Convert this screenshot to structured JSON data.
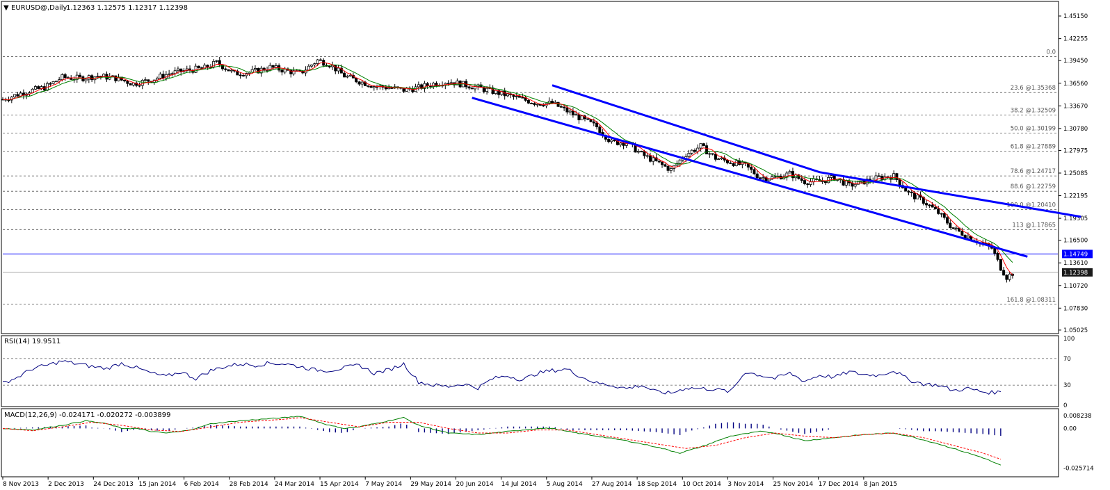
{
  "header": {
    "symbol": "EURUSD@,Daily",
    "ohlc": "1.12363 1.12575 1.12317 1.12398"
  },
  "colors": {
    "price_axis_bg": "#1a1a1a",
    "channel": "#0000ff",
    "hline": "#0000ff",
    "ma_fast": "#ff0000",
    "ma_slow": "#008000",
    "rsi": "#000080",
    "macd_main": "#008000",
    "macd_signal": "#ff0000",
    "macd_hist": "#000080"
  },
  "chart_data": [
    {
      "type": "candlestick",
      "title": "EURUSD@,Daily",
      "ylim": [
        1.0475,
        1.4675
      ],
      "y_ticks": [
        "1.45150",
        "1.42255",
        "1.39450",
        "1.36560",
        "1.33670",
        "1.30780",
        "1.27975",
        "1.25085",
        "1.22195",
        "1.19305",
        "1.16500",
        "1.13610",
        "1.10720",
        "1.07830",
        "1.05025"
      ],
      "x_labels": [
        "8 Nov 2013",
        "2 Dec 2013",
        "24 Dec 2013",
        "15 Jan 2014",
        "6 Feb 2014",
        "28 Feb 2014",
        "24 Mar 2014",
        "15 Apr 2014",
        "7 May 2014",
        "29 May 2014",
        "20 Jun 2014",
        "14 Jul 2014",
        "5 Aug 2014",
        "27 Aug 2014",
        "18 Sep 2014",
        "10 Oct 2014",
        "3 Nov 2014",
        "25 Nov 2014",
        "17 Dec 2014",
        "8 Jan 2015"
      ],
      "price_path": [
        [
          0,
          1.345
        ],
        [
          8,
          1.355
        ],
        [
          14,
          1.36
        ],
        [
          20,
          1.373
        ],
        [
          26,
          1.372
        ],
        [
          32,
          1.375
        ],
        [
          38,
          1.372
        ],
        [
          44,
          1.365
        ],
        [
          50,
          1.37
        ],
        [
          56,
          1.378
        ],
        [
          62,
          1.382
        ],
        [
          68,
          1.385
        ],
        [
          72,
          1.392
        ],
        [
          78,
          1.378
        ],
        [
          84,
          1.38
        ],
        [
          90,
          1.386
        ],
        [
          95,
          1.382
        ],
        [
          100,
          1.378
        ],
        [
          106,
          1.395
        ],
        [
          110,
          1.39
        ],
        [
          115,
          1.375
        ],
        [
          120,
          1.368
        ],
        [
          125,
          1.362
        ],
        [
          130,
          1.36
        ],
        [
          135,
          1.357
        ],
        [
          140,
          1.36
        ],
        [
          145,
          1.365
        ],
        [
          150,
          1.368
        ],
        [
          155,
          1.364
        ],
        [
          160,
          1.36
        ],
        [
          165,
          1.355
        ],
        [
          170,
          1.35
        ],
        [
          175,
          1.345
        ],
        [
          180,
          1.34
        ],
        [
          185,
          1.34
        ],
        [
          190,
          1.33
        ],
        [
          195,
          1.32
        ],
        [
          200,
          1.31
        ],
        [
          205,
          1.29
        ],
        [
          210,
          1.29
        ],
        [
          215,
          1.275
        ],
        [
          220,
          1.265
        ],
        [
          225,
          1.255
        ],
        [
          230,
          1.275
        ],
        [
          235,
          1.285
        ],
        [
          240,
          1.27
        ],
        [
          245,
          1.265
        ],
        [
          250,
          1.26
        ],
        [
          255,
          1.245
        ],
        [
          260,
          1.245
        ],
        [
          265,
          1.25
        ],
        [
          270,
          1.24
        ],
        [
          275,
          1.24
        ],
        [
          280,
          1.245
        ],
        [
          285,
          1.235
        ],
        [
          290,
          1.24
        ],
        [
          295,
          1.245
        ],
        [
          300,
          1.247
        ],
        [
          305,
          1.225
        ],
        [
          310,
          1.215
        ],
        [
          315,
          1.2
        ],
        [
          320,
          1.18
        ],
        [
          325,
          1.17
        ],
        [
          330,
          1.16
        ],
        [
          333,
          1.155
        ],
        [
          336,
          1.13
        ],
        [
          338,
          1.118
        ],
        [
          340,
          1.123
        ]
      ],
      "horizontal_line": {
        "label": "1.14749",
        "value": 1.14749
      },
      "last_price": {
        "label": "1.12398",
        "value": 1.12398
      },
      "fibonacci": [
        {
          "label": "0.0",
          "value": 1.3995
        },
        {
          "label": "23.6   @1.35368",
          "value": 1.35368
        },
        {
          "label": "38.2   @1.32509",
          "value": 1.32509
        },
        {
          "label": "50.0   @1.30199",
          "value": 1.30199
        },
        {
          "label": "61.8   @1.27889",
          "value": 1.27889
        },
        {
          "label": "78.6   @1.24717",
          "value": 1.24717
        },
        {
          "label": "88.6   @1.22759",
          "value": 1.22759
        },
        {
          "label": "100.0   @1.20410",
          "value": 1.2041
        },
        {
          "label": "113   @1.17865",
          "value": 1.17865
        },
        {
          "label": "161.8   @1.08311",
          "value": 1.08311
        }
      ],
      "channel_upper": [
        [
          185,
          1.363
        ],
        [
          275,
          1.252
        ],
        [
          363,
          1.195
        ]
      ],
      "channel_lower": [
        [
          158,
          1.347
        ],
        [
          345,
          1.144
        ]
      ]
    },
    {
      "type": "line",
      "title": "RSI(14) 19.9511",
      "ylim": [
        0,
        100
      ],
      "y_ticks": [
        "100",
        "70",
        "30",
        "0"
      ],
      "levels": [
        70,
        30
      ],
      "values": [
        [
          0,
          33
        ],
        [
          5,
          42
        ],
        [
          10,
          55
        ],
        [
          15,
          60
        ],
        [
          20,
          66
        ],
        [
          25,
          62
        ],
        [
          30,
          58
        ],
        [
          35,
          55
        ],
        [
          40,
          63
        ],
        [
          45,
          56
        ],
        [
          50,
          48
        ],
        [
          55,
          43
        ],
        [
          60,
          50
        ],
        [
          65,
          40
        ],
        [
          70,
          52
        ],
        [
          75,
          58
        ],
        [
          80,
          62
        ],
        [
          85,
          60
        ],
        [
          90,
          63
        ],
        [
          95,
          62
        ],
        [
          100,
          58
        ],
        [
          105,
          53
        ],
        [
          110,
          52
        ],
        [
          115,
          56
        ],
        [
          120,
          60
        ],
        [
          125,
          48
        ],
        [
          130,
          53
        ],
        [
          135,
          62
        ],
        [
          140,
          35
        ],
        [
          145,
          30
        ],
        [
          150,
          28
        ],
        [
          155,
          32
        ],
        [
          160,
          26
        ],
        [
          165,
          40
        ],
        [
          170,
          44
        ],
        [
          175,
          38
        ],
        [
          180,
          48
        ],
        [
          185,
          52
        ],
        [
          190,
          54
        ],
        [
          195,
          42
        ],
        [
          200,
          33
        ],
        [
          205,
          30
        ],
        [
          210,
          25
        ],
        [
          215,
          30
        ],
        [
          220,
          20
        ],
        [
          225,
          18
        ],
        [
          230,
          26
        ],
        [
          235,
          25
        ],
        [
          240,
          24
        ],
        [
          245,
          20
        ],
        [
          250,
          50
        ],
        [
          255,
          45
        ],
        [
          260,
          40
        ],
        [
          265,
          48
        ],
        [
          270,
          36
        ],
        [
          275,
          45
        ],
        [
          280,
          42
        ],
        [
          285,
          50
        ],
        [
          290,
          46
        ],
        [
          295,
          45
        ],
        [
          300,
          52
        ],
        [
          305,
          38
        ],
        [
          310,
          32
        ],
        [
          315,
          30
        ],
        [
          320,
          22
        ],
        [
          325,
          25
        ],
        [
          330,
          20
        ],
        [
          333,
          19
        ],
        [
          336,
          20
        ]
      ]
    },
    {
      "type": "line",
      "title": "MACD(12,26,9) -0.024171 -0.020272 -0.003899",
      "ylim": [
        -0.0305,
        0.011
      ],
      "y_ticks": [
        "0.008238",
        "0.00",
        "-0.025714"
      ],
      "main": [
        [
          0,
          0
        ],
        [
          10,
          -0.001
        ],
        [
          20,
          0.002
        ],
        [
          28,
          0.005
        ],
        [
          35,
          0.003
        ],
        [
          40,
          0
        ],
        [
          45,
          0
        ],
        [
          50,
          -0.002
        ],
        [
          55,
          -0.003
        ],
        [
          60,
          -0.002
        ],
        [
          65,
          0
        ],
        [
          70,
          0.003
        ],
        [
          80,
          0.005
        ],
        [
          95,
          0.007
        ],
        [
          100,
          0.008
        ],
        [
          105,
          0.005
        ],
        [
          110,
          0.002
        ],
        [
          115,
          0.0
        ],
        [
          120,
          0.001
        ],
        [
          125,
          0.003
        ],
        [
          130,
          0.005
        ],
        [
          135,
          0.007
        ],
        [
          140,
          0.002
        ],
        [
          150,
          -0.003
        ],
        [
          160,
          -0.004
        ],
        [
          170,
          -0.002
        ],
        [
          180,
          0
        ],
        [
          185,
          0
        ],
        [
          190,
          -0.002
        ],
        [
          200,
          -0.005
        ],
        [
          210,
          -0.008
        ],
        [
          220,
          -0.012
        ],
        [
          228,
          -0.016
        ],
        [
          235,
          -0.012
        ],
        [
          245,
          -0.005
        ],
        [
          255,
          -0.002
        ],
        [
          260,
          -0.003
        ],
        [
          270,
          -0.008
        ],
        [
          280,
          -0.006
        ],
        [
          290,
          -0.004
        ],
        [
          300,
          -0.003
        ],
        [
          305,
          -0.005
        ],
        [
          315,
          -0.01
        ],
        [
          325,
          -0.016
        ],
        [
          330,
          -0.019
        ],
        [
          336,
          -0.024
        ]
      ],
      "signal": [
        [
          0,
          0
        ],
        [
          10,
          -0.0015
        ],
        [
          20,
          0.001
        ],
        [
          30,
          0.004
        ],
        [
          40,
          0.002
        ],
        [
          50,
          -0.001
        ],
        [
          60,
          -0.002
        ],
        [
          70,
          0.001
        ],
        [
          80,
          0.004
        ],
        [
          95,
          0.006
        ],
        [
          100,
          0.007
        ],
        [
          110,
          0.004
        ],
        [
          120,
          0.001
        ],
        [
          130,
          0.004
        ],
        [
          140,
          0.004
        ],
        [
          150,
          0
        ],
        [
          160,
          -0.003
        ],
        [
          170,
          -0.003
        ],
        [
          180,
          -0.001
        ],
        [
          190,
          -0.001
        ],
        [
          200,
          -0.004
        ],
        [
          210,
          -0.007
        ],
        [
          220,
          -0.01
        ],
        [
          230,
          -0.013
        ],
        [
          240,
          -0.011
        ],
        [
          250,
          -0.006
        ],
        [
          260,
          -0.003
        ],
        [
          270,
          -0.005
        ],
        [
          280,
          -0.006
        ],
        [
          290,
          -0.004
        ],
        [
          300,
          -0.003
        ],
        [
          310,
          -0.006
        ],
        [
          320,
          -0.011
        ],
        [
          330,
          -0.016
        ],
        [
          336,
          -0.02
        ]
      ],
      "histogram_color": "#000080"
    }
  ]
}
